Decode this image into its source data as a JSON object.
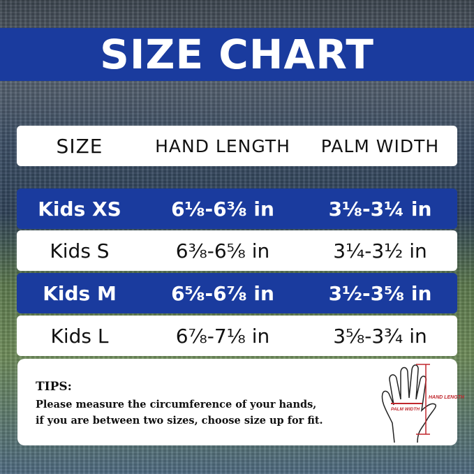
{
  "title": "SIZE CHART",
  "headers": [
    "SIZE",
    "HAND LENGTH",
    "PALM WIDTH"
  ],
  "rows": [
    {
      "size": "Kids XS",
      "hand_length": "6⅛-6⅜ in",
      "palm_width": "3⅛-3¼ in",
      "style": "blue"
    },
    {
      "size": "Kids S",
      "hand_length": "6⅜-6⅝ in",
      "palm_width": "3¼-3½ in",
      "style": "white"
    },
    {
      "size": "Kids M",
      "hand_length": "6⅝-6⅞ in",
      "palm_width": "3½-3⅝ in",
      "style": "blue"
    },
    {
      "size": "Kids L",
      "hand_length": "6⅞-7⅛ in",
      "palm_width": "3⅝-3¾ in",
      "style": "white"
    }
  ],
  "tips": {
    "heading": "TIPS:",
    "line1": "Please measure the circumference of your hands,",
    "line2": "if you are between two sizes, choose size up for fit."
  },
  "diagram": {
    "hand_length_label": "HAND LENGTH",
    "palm_width_label": "PALM WIDTH"
  },
  "colors": {
    "brand_blue": "#1a3b9e",
    "measure_red": "#c0272d"
  }
}
